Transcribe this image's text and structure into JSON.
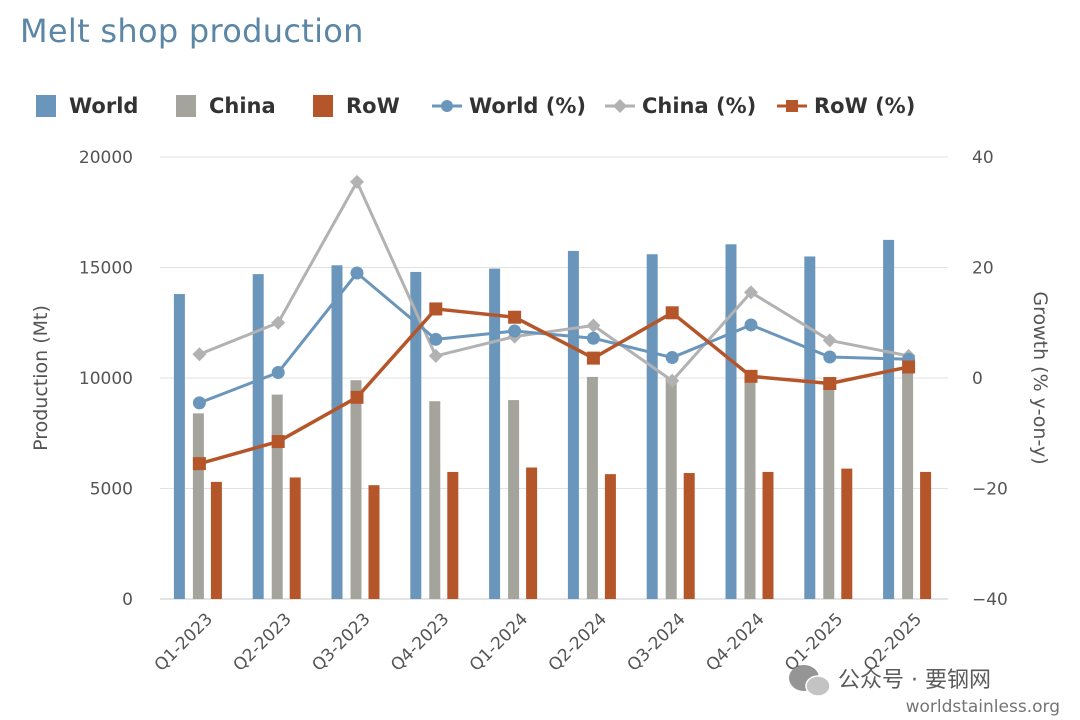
{
  "colors": {
    "world": "#6b96bb",
    "china": "#a4a49c",
    "row": "#b5562a",
    "china_line": "#b2b2b2",
    "grid": "#e2e2e2",
    "title": "#5b86a6"
  },
  "watermark": {
    "line1": "公众号 · 要钢网",
    "line2": "worldstainless.org",
    "icon": "wechat-icon"
  },
  "chart_data": {
    "type": "bar",
    "title": "Melt shop production",
    "categories": [
      "Q1-2023",
      "Q2-2023",
      "Q3-2023",
      "Q4-2023",
      "Q1-2024",
      "Q2-2024",
      "Q3-2024",
      "Q4-2024",
      "Q1-2025",
      "Q2-2025"
    ],
    "ylabel": "Production (Mt)",
    "y2label": "Growth (% y-on-y)",
    "ylim": [
      0,
      20000
    ],
    "y2lim": [
      -40,
      40
    ],
    "yticks": [
      "0",
      "5000",
      "10000",
      "15000",
      "20000"
    ],
    "y2ticks": [
      "−40",
      "−20",
      "0",
      "20",
      "40"
    ],
    "grid": true,
    "legend_position": "top",
    "legend": [
      "World",
      "China",
      "RoW",
      "World (%)",
      "China (%)",
      "RoW (%)"
    ],
    "series": [
      {
        "name": "World",
        "kind": "bar",
        "axis": "left",
        "values": [
          13800,
          14700,
          15100,
          14800,
          14950,
          15750,
          15600,
          16050,
          15500,
          16250
        ]
      },
      {
        "name": "China",
        "kind": "bar",
        "axis": "left",
        "values": [
          8400,
          9250,
          9900,
          8950,
          9000,
          10050,
          10000,
          10200,
          9800,
          10300
        ]
      },
      {
        "name": "RoW",
        "kind": "bar",
        "axis": "left",
        "values": [
          5300,
          5500,
          5150,
          5750,
          5950,
          5650,
          5700,
          5750,
          5900,
          5750
        ]
      },
      {
        "name": "World (%)",
        "kind": "line",
        "axis": "right",
        "marker": "circle",
        "values": [
          -4.5,
          1,
          19,
          7,
          8.5,
          7.2,
          3.7,
          9.6,
          3.8,
          3.4
        ]
      },
      {
        "name": "China (%)",
        "kind": "line",
        "axis": "right",
        "marker": "diamond",
        "values": [
          4.3,
          10,
          35.5,
          4,
          7.5,
          9.5,
          -0.5,
          15.5,
          6.8,
          4
        ]
      },
      {
        "name": "RoW (%)",
        "kind": "line",
        "axis": "right",
        "marker": "square",
        "values": [
          -15.5,
          -11.5,
          -3.5,
          12.5,
          11,
          3.6,
          11.8,
          0.3,
          -1,
          2
        ]
      }
    ]
  }
}
